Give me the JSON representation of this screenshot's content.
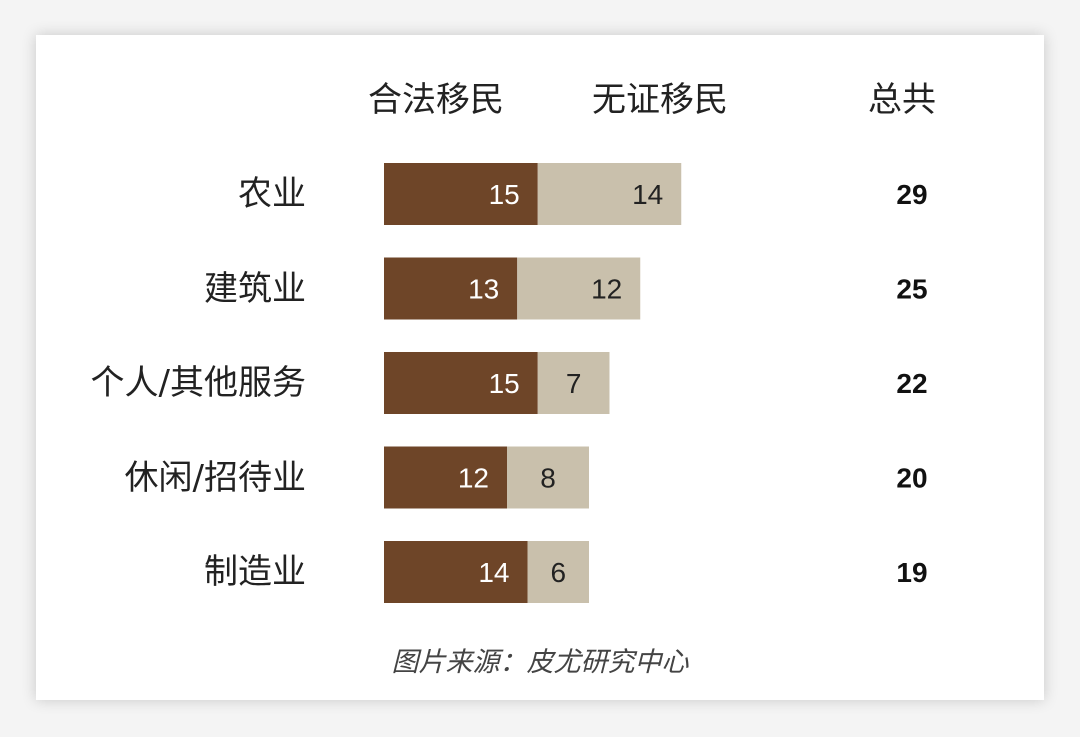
{
  "headers": {
    "legal": "合法移民",
    "undocumented": "无证移民",
    "total": "总共"
  },
  "source": "图片来源：皮尤研究中心",
  "colors": {
    "legal": "#6e4528",
    "undocumented": "#c9c0ac",
    "legal_text": "#ffffff",
    "undocumented_text": "#222222"
  },
  "chart_data": {
    "type": "bar",
    "orientation": "horizontal",
    "stacked": true,
    "categories": [
      "农业",
      "建筑业",
      "个人/其他服务",
      "休闲/招待业",
      "制造业"
    ],
    "series": [
      {
        "name": "合法移民",
        "values": [
          15,
          13,
          15,
          12,
          14
        ]
      },
      {
        "name": "无证移民",
        "values": [
          14,
          12,
          7,
          8,
          6
        ]
      }
    ],
    "totals": [
      29,
      25,
      22,
      20,
      19
    ],
    "xlim": [
      0,
      29
    ]
  }
}
